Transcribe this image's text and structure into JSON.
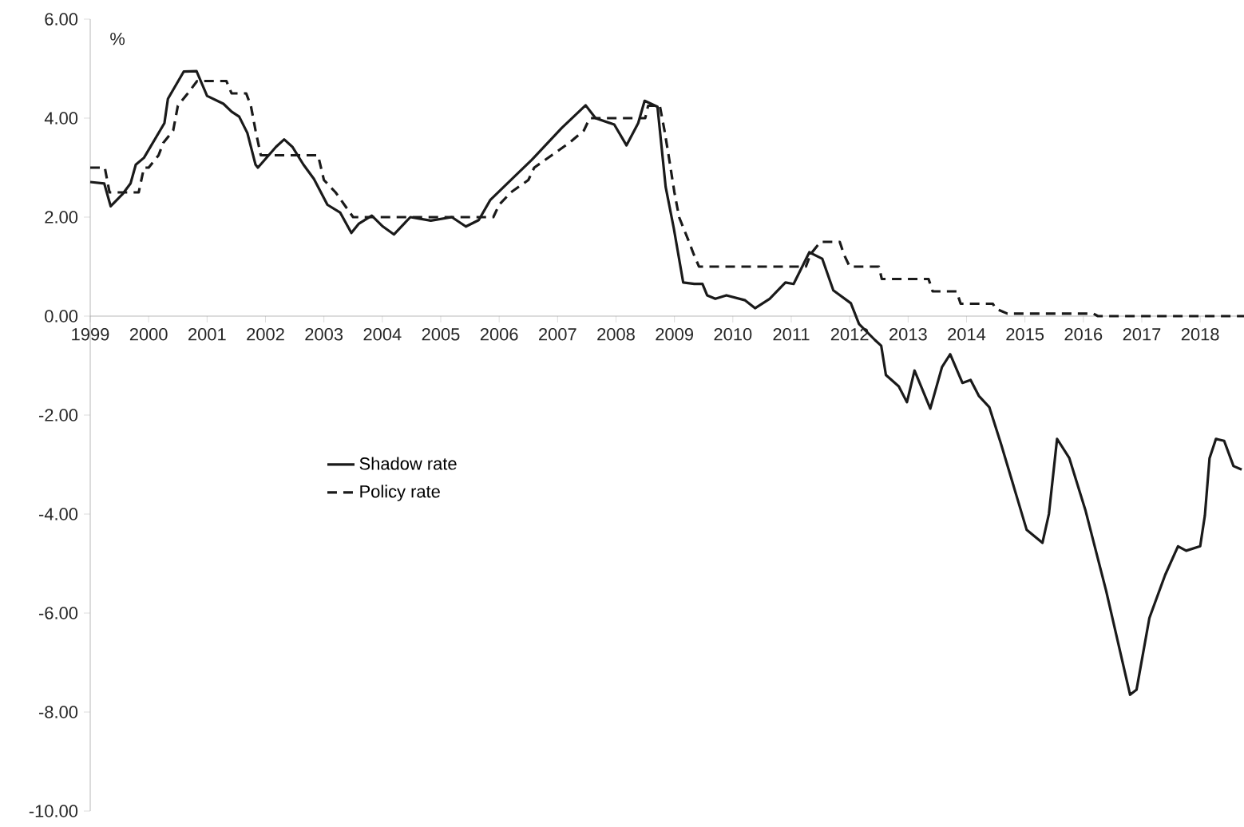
{
  "chart_data": {
    "type": "line",
    "ylabel": "%",
    "xlim": [
      1999,
      2018.75
    ],
    "ylim": [
      -10,
      6
    ],
    "xticks": [
      1999,
      2000,
      2001,
      2002,
      2003,
      2004,
      2005,
      2006,
      2007,
      2008,
      2009,
      2010,
      2011,
      2012,
      2013,
      2014,
      2015,
      2016,
      2017,
      2018
    ],
    "yticks": [
      {
        "value": -10,
        "label": "-10.00"
      },
      {
        "value": -8,
        "label": "-8.00"
      },
      {
        "value": -6,
        "label": "-6.00"
      },
      {
        "value": -4,
        "label": "-4.00"
      },
      {
        "value": -2,
        "label": "-2.00"
      },
      {
        "value": 0,
        "label": "0.00"
      },
      {
        "value": 2,
        "label": "2.00"
      },
      {
        "value": 4,
        "label": "4.00"
      },
      {
        "value": 6,
        "label": "6.00"
      }
    ],
    "legend": "left",
    "grid": false,
    "series": [
      {
        "name": "Shadow rate",
        "color": "#1a1a1a",
        "line_style": "solid",
        "x": [
          1999.0,
          1999.24,
          1999.35,
          1999.55,
          1999.69,
          1999.78,
          1999.92,
          2000.27,
          2000.33,
          2000.6,
          2000.82,
          2001.0,
          2001.28,
          2001.42,
          2001.55,
          2001.69,
          2001.83,
          2001.87,
          2002.18,
          2002.32,
          2002.46,
          2002.65,
          2002.83,
          2003.06,
          2003.28,
          2003.47,
          2003.6,
          2003.82,
          2004.01,
          2004.2,
          2004.48,
          2004.83,
          2005.19,
          2005.43,
          2005.65,
          2005.85,
          2006.28,
          2006.56,
          2007.07,
          2007.48,
          2007.65,
          2007.97,
          2008.18,
          2008.38,
          2008.49,
          2008.6,
          2008.71,
          2008.85,
          2008.99,
          2009.15,
          2009.34,
          2009.48,
          2009.56,
          2009.7,
          2009.89,
          2010.21,
          2010.38,
          2010.63,
          2010.9,
          2011.04,
          2011.31,
          2011.53,
          2011.72,
          2012.02,
          2012.16,
          2012.43,
          2012.54,
          2012.62,
          2012.84,
          2012.98,
          2013.11,
          2013.38,
          2013.58,
          2013.72,
          2013.93,
          2014.07,
          2014.21,
          2014.39,
          2014.59,
          2015.03,
          2015.3,
          2015.41,
          2015.55,
          2015.76,
          2016.04,
          2016.39,
          2016.8,
          2016.91,
          2017.13,
          2017.4,
          2017.62,
          2017.76,
          2018.0,
          2018.08,
          2018.16,
          2018.27,
          2018.41,
          2018.57,
          2018.71
        ],
        "values": [
          2.71,
          2.68,
          2.22,
          2.46,
          2.68,
          3.06,
          3.2,
          3.9,
          4.39,
          4.94,
          4.95,
          4.45,
          4.29,
          4.13,
          4.03,
          3.7,
          3.06,
          3.0,
          3.42,
          3.57,
          3.42,
          3.06,
          2.77,
          2.25,
          2.09,
          1.68,
          1.87,
          2.03,
          1.81,
          1.65,
          2.0,
          1.93,
          2.0,
          1.81,
          1.94,
          2.35,
          2.84,
          3.16,
          3.8,
          4.26,
          4.0,
          3.87,
          3.45,
          3.9,
          4.35,
          4.29,
          4.23,
          2.61,
          1.77,
          0.68,
          0.65,
          0.65,
          0.42,
          0.35,
          0.42,
          0.32,
          0.16,
          0.35,
          0.68,
          0.65,
          1.29,
          1.16,
          0.52,
          0.26,
          -0.16,
          -0.48,
          -0.6,
          -1.19,
          -1.42,
          -1.74,
          -1.1,
          -1.87,
          -1.03,
          -0.77,
          -1.35,
          -1.29,
          -1.61,
          -1.84,
          -2.58,
          -4.32,
          -4.58,
          -4.0,
          -2.48,
          -2.87,
          -3.94,
          -5.55,
          -7.65,
          -7.55,
          -6.1,
          -5.23,
          -4.65,
          -4.74,
          -4.65,
          -4.03,
          -2.87,
          -2.48,
          -2.52,
          -3.03,
          -3.1
        ]
      },
      {
        "name": "Policy rate",
        "color": "#1a1a1a",
        "line_style": "dashed",
        "x": [
          1999.0,
          1999.25,
          1999.33,
          1999.83,
          1999.92,
          2000.0,
          2000.17,
          2000.25,
          2000.42,
          2000.5,
          2000.67,
          2000.83,
          2001.33,
          2001.42,
          2001.67,
          2001.75,
          2001.83,
          2001.92,
          2002.9,
          2003.0,
          2003.2,
          2003.5,
          2005.9,
          2006.0,
          2006.2,
          2006.5,
          2006.6,
          2006.9,
          2007.2,
          2007.45,
          2007.55,
          2008.5,
          2008.55,
          2008.75,
          2008.83,
          2008.9,
          2009.0,
          2009.08,
          2009.25,
          2009.33,
          2009.42,
          2011.25,
          2011.33,
          2011.5,
          2011.83,
          2011.9,
          2012.0,
          2012.5,
          2012.55,
          2013.35,
          2013.42,
          2013.83,
          2013.9,
          2014.45,
          2014.5,
          2014.7,
          2016.17,
          2016.25,
          2018.75
        ],
        "values": [
          3.0,
          3.0,
          2.5,
          2.5,
          3.0,
          3.0,
          3.25,
          3.5,
          3.75,
          4.25,
          4.5,
          4.75,
          4.75,
          4.5,
          4.5,
          4.25,
          3.75,
          3.25,
          3.25,
          2.75,
          2.5,
          2.0,
          2.0,
          2.25,
          2.5,
          2.75,
          3.0,
          3.25,
          3.5,
          3.75,
          4.0,
          4.0,
          4.25,
          4.25,
          3.75,
          3.25,
          2.5,
          2.0,
          1.5,
          1.25,
          1.0,
          1.0,
          1.25,
          1.5,
          1.5,
          1.25,
          1.0,
          1.0,
          0.75,
          0.75,
          0.5,
          0.5,
          0.25,
          0.25,
          0.15,
          0.05,
          0.05,
          0.0,
          0.0
        ]
      }
    ]
  }
}
